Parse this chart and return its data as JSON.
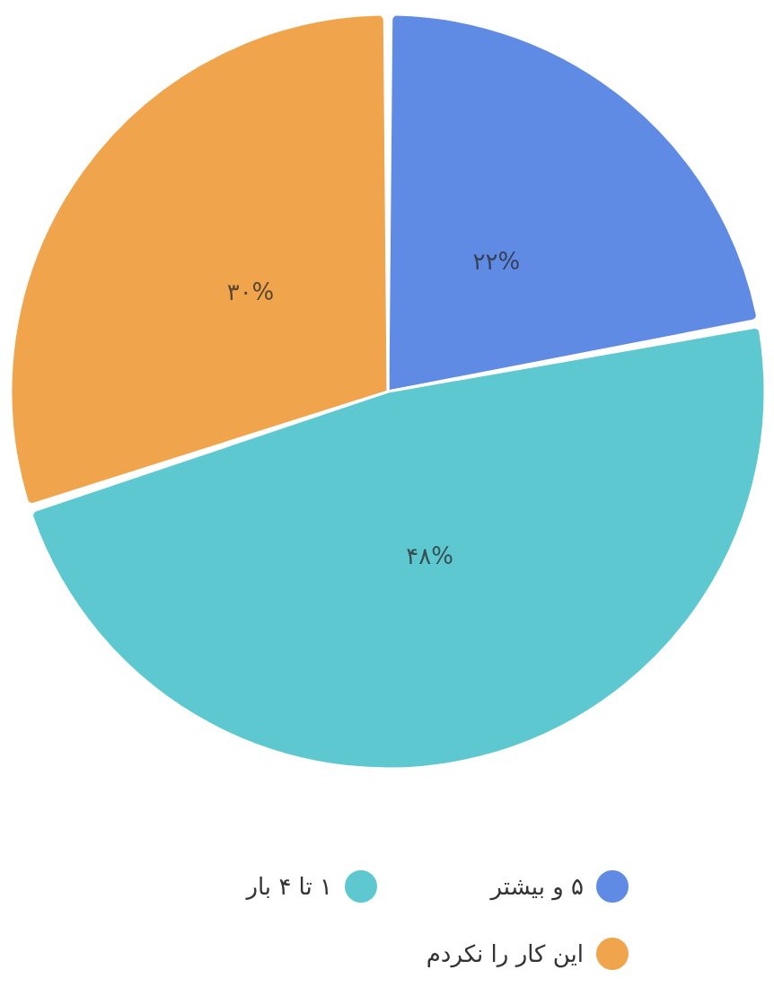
{
  "chart_data": {
    "type": "pie",
    "categories": [
      "۵ و بیشتر",
      "۱ تا ۴ بار",
      "این کار را نکردم"
    ],
    "values": [
      22,
      48,
      30
    ],
    "colors": [
      "#5f8be4",
      "#5dc8d0",
      "#f0a44b"
    ],
    "value_labels": [
      "۲۲%",
      "۴۸%",
      "۳۰%"
    ],
    "legend": "bottom"
  }
}
